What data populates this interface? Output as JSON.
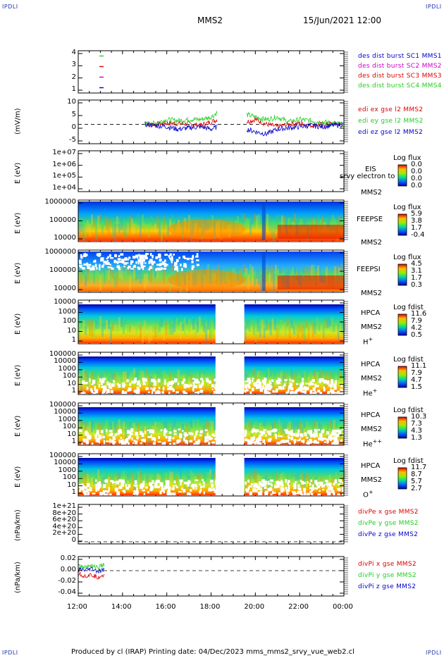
{
  "corner_label": "IPDLI",
  "header": {
    "title": "MMS2",
    "datetime": "15/Jun/2021 12:00"
  },
  "footer": {
    "text": "Produced by cl (IRAP)    Printing date: 04/Dec/2023    mms_mms2_srvy_vue_web2.cl"
  },
  "time_axis": {
    "ticks": [
      "12:00",
      "14:00",
      "16:00",
      "18:00",
      "20:00",
      "22:00",
      "00:00"
    ],
    "range_hours": [
      12,
      24
    ]
  },
  "colors": {
    "red": "#dd0000",
    "green": "#22cc22",
    "blue": "#0000cc",
    "magenta": "#cc00cc"
  },
  "chart_data": [
    {
      "type": "scatter",
      "panel": "burst",
      "yticks": [
        "4",
        "3",
        "2",
        "1"
      ],
      "ylim": [
        0.5,
        4.5
      ],
      "legend": [
        {
          "text": "des dist burst SC1 MMS1",
          "color": "#0000cc"
        },
        {
          "text": "des dist burst SC2 MMS2",
          "color": "#cc00cc"
        },
        {
          "text": "des dist burst SC3 MMS3",
          "color": "#dd0000"
        },
        {
          "text": "des dist burst SC4 MMS4",
          "color": "#22cc22"
        }
      ],
      "series": [
        {
          "name": "MMS1",
          "x": [
            13.05
          ],
          "y": [
            1
          ]
        },
        {
          "name": "MMS2",
          "x": [
            13.05
          ],
          "y": [
            2
          ]
        },
        {
          "name": "MMS3",
          "x": [
            13.05
          ],
          "y": [
            3
          ]
        },
        {
          "name": "MMS4",
          "x": [
            13.05
          ],
          "y": [
            4
          ]
        }
      ]
    },
    {
      "type": "line",
      "panel": "efield",
      "ylabel": "(mV/m)",
      "yticks": [
        "10",
        "5",
        "0",
        "-5"
      ],
      "ylim": [
        -8,
        10
      ],
      "legend": [
        {
          "text": "edi ex gse l2 MMS2",
          "color": "#dd0000"
        },
        {
          "text": "edi ey gse l2 MMS2",
          "color": "#22cc22"
        },
        {
          "text": "edi ez gse l2 MMS2",
          "color": "#0000cc"
        }
      ],
      "series": [
        {
          "name": "edi ex gse l2 MMS2",
          "x": [
            15.0,
            15.5,
            16.0,
            16.5,
            17.0,
            17.5,
            18.0,
            18.3,
            19.6,
            20.0,
            20.5,
            21.0,
            21.5,
            22.0,
            22.5,
            23.0,
            23.5,
            24.0
          ],
          "y": [
            0,
            0,
            0.5,
            0.3,
            0.2,
            -0.5,
            1,
            2,
            1,
            2,
            0,
            -1,
            0,
            0.5,
            -0.5,
            0,
            0.2,
            0
          ]
        },
        {
          "name": "edi ey gse l2 MMS2",
          "x": [
            15.0,
            15.5,
            16.0,
            16.5,
            17.0,
            17.5,
            18.0,
            18.3,
            19.6,
            20.0,
            20.5,
            21.0,
            21.5,
            22.0,
            22.5,
            23.0,
            23.5,
            24.0
          ],
          "y": [
            0,
            0.5,
            2,
            1.5,
            2,
            2,
            3,
            5,
            4,
            3,
            2,
            3,
            1,
            2,
            1.5,
            1,
            0.5,
            0
          ]
        },
        {
          "name": "edi ez gse l2 MMS2",
          "x": [
            15.0,
            15.5,
            16.0,
            16.5,
            17.0,
            17.5,
            18.0,
            18.3,
            19.6,
            20.0,
            20.5,
            21.0,
            21.5,
            22.0,
            22.5,
            23.0,
            23.5,
            24.0
          ],
          "y": [
            0,
            -0.5,
            -1,
            -2,
            -1.5,
            -1,
            -2,
            -1,
            -2,
            -3,
            -4,
            -2,
            -1.5,
            -1,
            -0.5,
            -1,
            -0.5,
            0
          ]
        }
      ]
    },
    {
      "type": "heatmap",
      "panel": "eis",
      "ylabel": "E (eV)",
      "yticks": [
        "1e+07",
        "1e+06",
        "1e+05",
        "1e+04"
      ],
      "ylim": [
        10000,
        10000000
      ],
      "side_labels": [
        "EIS",
        "srvy electron to",
        "MMS2"
      ],
      "colorbar": {
        "title": "Log flux",
        "values": [
          "0.0",
          "0.0",
          "0.0",
          "0.0"
        ]
      },
      "coverage": []
    },
    {
      "type": "heatmap",
      "panel": "feepse",
      "ylabel": "E (eV)",
      "yticks": [
        "1000000",
        "100000",
        "10000"
      ],
      "ylim": [
        10000,
        1000000
      ],
      "side_labels": [
        "FEEPSE",
        "MMS2"
      ],
      "colorbar": {
        "title": "Log flux",
        "values": [
          "5.9",
          "3.8",
          "1.7",
          "-0.4"
        ]
      },
      "coverage": [
        [
          12,
          24
        ]
      ]
    },
    {
      "type": "heatmap",
      "panel": "feepsi",
      "ylabel": "E (eV)",
      "yticks": [
        "1000000",
        "100000",
        "10000"
      ],
      "ylim": [
        10000,
        1000000
      ],
      "side_labels": [
        "FEEPSI",
        "MMS2"
      ],
      "colorbar": {
        "title": "Log flux",
        "values": [
          "4.5",
          "3.1",
          "1.7",
          "0.3"
        ]
      },
      "coverage": [
        [
          12,
          24
        ]
      ]
    },
    {
      "type": "heatmap",
      "panel": "hpca_h",
      "ylabel": "E (eV)",
      "yticks": [
        "10000",
        "1000",
        "100",
        "10",
        "1"
      ],
      "ylim": [
        1,
        30000
      ],
      "side_labels": [
        "HPCA",
        "MMS2"
      ],
      "species": "H",
      "charge": "+",
      "colorbar": {
        "title": "Log fdist",
        "values": [
          "11.6",
          "7.9",
          "4.2",
          "0.5"
        ]
      },
      "coverage": [
        [
          12,
          18.2
        ],
        [
          19.5,
          24
        ]
      ]
    },
    {
      "type": "heatmap",
      "panel": "hpca_he",
      "ylabel": "E (eV)",
      "yticks": [
        "100000",
        "10000",
        "1000",
        "100",
        "10",
        "1"
      ],
      "ylim": [
        1,
        100000
      ],
      "side_labels": [
        "HPCA",
        "MMS2"
      ],
      "species": "He",
      "charge": "+",
      "colorbar": {
        "title": "Log fdist",
        "values": [
          "11.1",
          "7.9",
          "4.7",
          "1.5"
        ]
      },
      "coverage": [
        [
          12,
          18.2
        ],
        [
          19.5,
          24
        ]
      ]
    },
    {
      "type": "heatmap",
      "panel": "hpca_he2",
      "ylabel": "E (eV)",
      "yticks": [
        "100000",
        "10000",
        "1000",
        "100",
        "10",
        "1"
      ],
      "ylim": [
        1,
        100000
      ],
      "side_labels": [
        "HPCA",
        "MMS2"
      ],
      "species": "He",
      "charge": "++",
      "colorbar": {
        "title": "Log fdist",
        "values": [
          "10.3",
          "7.3",
          "4.3",
          "1.3"
        ]
      },
      "coverage": [
        [
          12,
          18.2
        ],
        [
          19.5,
          24
        ]
      ]
    },
    {
      "type": "heatmap",
      "panel": "hpca_o",
      "ylabel": "E (eV)",
      "yticks": [
        "100000",
        "10000",
        "1000",
        "100",
        "10",
        "1"
      ],
      "ylim": [
        1,
        100000
      ],
      "side_labels": [
        "HPCA",
        "MMS2"
      ],
      "species": "O",
      "charge": "+",
      "colorbar": {
        "title": "Log fdist",
        "values": [
          "11.7",
          "8.7",
          "5.7",
          "2.7"
        ]
      },
      "coverage": [
        [
          12,
          18.2
        ],
        [
          19.5,
          24
        ]
      ]
    },
    {
      "type": "line",
      "panel": "divpe",
      "ylabel": "(nPa/km)",
      "yticks": [
        "1e+21",
        "8e+20",
        "6e+20",
        "4e+20",
        "2e+20",
        "0"
      ],
      "ylim": [
        0,
        1e+21
      ],
      "legend": [
        {
          "text": "divPe x gse MMS2",
          "color": "#dd0000"
        },
        {
          "text": "divPe y gse MMS2",
          "color": "#22cc22"
        },
        {
          "text": "divPe z gse MMS2",
          "color": "#0000cc"
        }
      ],
      "series": []
    },
    {
      "type": "line",
      "panel": "divpi",
      "ylabel": "(nPa/km)",
      "yticks": [
        "0.02",
        "0.00",
        "-0.02",
        "-0.04"
      ],
      "ylim": [
        -0.045,
        0.025
      ],
      "legend": [
        {
          "text": "divPi x gse MMS2",
          "color": "#dd0000"
        },
        {
          "text": "divPi y gse MMS2",
          "color": "#22cc22"
        },
        {
          "text": "divPi z gse MMS2",
          "color": "#0000cc"
        }
      ],
      "series": [
        {
          "name": "divPi x gse MMS2",
          "x": [
            12.0,
            12.3,
            12.6,
            12.9,
            13.2
          ],
          "y": [
            -0.005,
            -0.01,
            -0.008,
            -0.012,
            -0.006
          ]
        },
        {
          "name": "divPi y gse MMS2",
          "x": [
            12.0,
            12.3,
            12.6,
            12.9,
            13.2
          ],
          "y": [
            0.008,
            0.006,
            0.01,
            0.005,
            0.012
          ]
        },
        {
          "name": "divPi z gse MMS2",
          "x": [
            12.0,
            12.3,
            12.6,
            12.9,
            13.2
          ],
          "y": [
            0.002,
            0.0,
            0.003,
            -0.002,
            0.001
          ]
        }
      ]
    }
  ]
}
